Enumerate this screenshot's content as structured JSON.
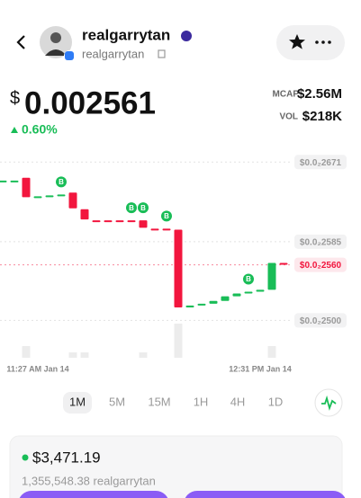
{
  "header": {
    "name": "realgarrytan",
    "handle": "realgarrytan"
  },
  "price": {
    "currency": "$",
    "value": "0.002561",
    "change": "0.60%"
  },
  "stats": [
    {
      "label": "MCAP",
      "value": "$2.56M"
    },
    {
      "label": "VOL",
      "value": "$218K"
    }
  ],
  "chart_data": {
    "type": "candlestick",
    "categories": [
      null,
      null,
      null,
      "11:27 AM Jan 14",
      null,
      null,
      null,
      null,
      null,
      null,
      null,
      null,
      null,
      null,
      null,
      null,
      null,
      null,
      null,
      null,
      null,
      null,
      "12:31 PM Jan 14",
      null,
      null
    ],
    "open": [
      0.002651,
      0.002651,
      0.002654,
      0.002633,
      0.002635,
      0.002636,
      0.002638,
      0.00262,
      0.002608,
      0.002608,
      0.002608,
      0.002608,
      0.002608,
      0.002599,
      0.002599,
      0.002598,
      0.002514,
      0.002516,
      0.002518,
      0.002521,
      0.002526,
      0.002529,
      0.002531,
      0.002533,
      0.002562
    ],
    "close": [
      0.002651,
      0.002651,
      0.002633,
      0.002634,
      0.002635,
      0.002636,
      0.002621,
      0.002609,
      0.002608,
      0.002608,
      0.002608,
      0.002608,
      0.0026,
      0.002599,
      0.002599,
      0.002514,
      0.002516,
      0.002518,
      0.002521,
      0.002526,
      0.002529,
      0.002531,
      0.002533,
      0.002562,
      0.002561
    ],
    "volumes": [
      0,
      0,
      13,
      0,
      0,
      0,
      6,
      6,
      0,
      0,
      0,
      0,
      6,
      0,
      0,
      38,
      0,
      0,
      0,
      0,
      0,
      0,
      0,
      13,
      0
    ],
    "markers": [
      null,
      null,
      null,
      null,
      null,
      "B",
      null,
      null,
      null,
      null,
      null,
      "B",
      "B",
      null,
      "B",
      null,
      null,
      null,
      null,
      null,
      null,
      "B",
      null,
      null,
      null
    ],
    "ylim": [
      0.00248,
      0.00268
    ],
    "yticks": [
      {
        "value": 0.002671,
        "label": "$0.0₂2671"
      },
      {
        "value": 0.002585,
        "label": "$0.0₂2585"
      },
      {
        "value": 0.0025,
        "label": "$0.0₂2500"
      }
    ],
    "current_price": {
      "value": 0.00256,
      "label": "$0.0₂2560"
    },
    "up_color": "#19bd57",
    "down_color": "#f2163e"
  },
  "timeframes": [
    {
      "label": "1M",
      "selected": true
    },
    {
      "label": "5M",
      "selected": false
    },
    {
      "label": "15M",
      "selected": false
    },
    {
      "label": "1H",
      "selected": false
    },
    {
      "label": "4H",
      "selected": false
    },
    {
      "label": "1D",
      "selected": false
    }
  ],
  "holding": {
    "value": "$3,471.19",
    "amount": "1,355,548.38 realgarrytan"
  }
}
